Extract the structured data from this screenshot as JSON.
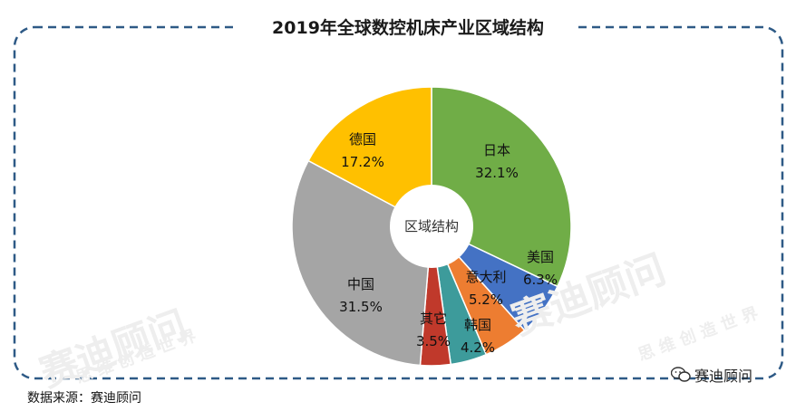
{
  "title": "2019年全球数控机床产业区域结构",
  "source": "数据来源：赛迪顾问",
  "brand": {
    "icon": "wechat-icon",
    "name": "赛迪顾问"
  },
  "watermarks": [
    "赛迪顾问",
    "思 维 创 造 世 界"
  ],
  "chart_data": {
    "type": "pie",
    "title": "2019年全球数控机床产业区域结构",
    "center_label": "区域结构",
    "unit": "%",
    "slices": [
      {
        "name": "日本",
        "value": 32.1,
        "color": "#70ad47"
      },
      {
        "name": "美国",
        "value": 6.3,
        "color": "#4472c4"
      },
      {
        "name": "意大利",
        "value": 5.2,
        "color": "#ed7d31"
      },
      {
        "name": "韩国",
        "value": 4.2,
        "color": "#3d9b9b"
      },
      {
        "name": "其它",
        "value": 3.5,
        "color": "#c0392b"
      },
      {
        "name": "中国",
        "value": 31.5,
        "color": "#a5a5a5"
      },
      {
        "name": "德国",
        "value": 17.2,
        "color": "#ffc000"
      }
    ]
  }
}
